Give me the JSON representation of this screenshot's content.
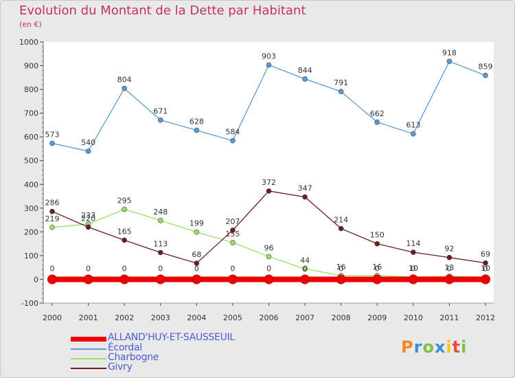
{
  "header": {
    "title": "Evolution du Montant de la Dette par Habitant",
    "unit": "(en €)"
  },
  "chart_data": {
    "type": "line",
    "ylim": [
      -100,
      1000
    ],
    "yticks": [
      "-100",
      "0",
      "100",
      "200",
      "300",
      "400",
      "500",
      "600",
      "700",
      "800",
      "900",
      "1000"
    ],
    "categories": [
      "2000",
      "2001",
      "2002",
      "2003",
      "2004",
      "2005",
      "2006",
      "2007",
      "2008",
      "2009",
      "2010",
      "2011",
      "2012"
    ],
    "grid": false,
    "legend_position": "bottom-left",
    "series": [
      {
        "name": "ALLAND'HUY-ET-SAUSSEUIL",
        "color": "#ee0000",
        "values": [
          0,
          0,
          0,
          0,
          0,
          0,
          0,
          0,
          0,
          0,
          0,
          0,
          0
        ],
        "labels": [
          "0",
          "0",
          "0",
          "0",
          "0",
          "0",
          "0",
          "0",
          "0",
          "0",
          "0",
          "0",
          "0"
        ]
      },
      {
        "name": "Écordal",
        "color": "#5b9bd5",
        "values": [
          573,
          540,
          804,
          671,
          628,
          584,
          903,
          844,
          791,
          662,
          613,
          918,
          859
        ],
        "labels": [
          "573",
          "540",
          "804",
          "671",
          "628",
          "584",
          "903",
          "844",
          "791",
          "662",
          "613",
          "918",
          "859"
        ]
      },
      {
        "name": "Charbogne",
        "color": "#99e266",
        "values": [
          219,
          233,
          295,
          248,
          199,
          155,
          96,
          44,
          16,
          16,
          10,
          13,
          10
        ],
        "labels": [
          "219",
          "233",
          "295",
          "248",
          "199",
          "155",
          "96",
          "44",
          "16",
          "16",
          "10",
          "13",
          "10"
        ]
      },
      {
        "name": "Givry",
        "color": "#6b1e1e",
        "values": [
          286,
          220,
          165,
          113,
          68,
          207,
          372,
          347,
          214,
          150,
          114,
          92,
          69
        ],
        "labels": [
          "286",
          "220",
          "165",
          "113",
          "68",
          "207",
          "372",
          "347",
          "214",
          "150",
          "114",
          "92",
          "69"
        ]
      }
    ]
  },
  "logo": {
    "letters": [
      "P",
      "r",
      "o",
      "x",
      "i",
      "t",
      "i"
    ],
    "colors": [
      "#f08a1c",
      "#3a8fd8",
      "#7cc242",
      "#3a8fd8",
      "#f5c518",
      "#e84a3c",
      "#7cc242"
    ]
  }
}
